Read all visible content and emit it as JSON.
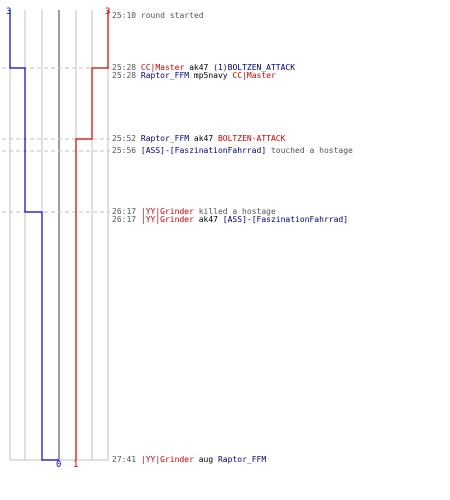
{
  "colors": {
    "team_blue": "#0000cc",
    "team_red": "#cc0000",
    "player_blue": "#000080",
    "player_red": "#cc0000",
    "grid": "#c0c0c0",
    "grid_center": "#808080",
    "dashed": "#c0c0c0",
    "time_text": "#555555",
    "action_text": "#555555",
    "weapon_text": "#000000"
  },
  "score_labels": {
    "blue_start": "3",
    "red_start": "3",
    "blue_end": "0",
    "red_end": "1"
  },
  "timeline": {
    "blue_counts": [
      3,
      3,
      2,
      2,
      2,
      1,
      1,
      0
    ],
    "red_counts": [
      3,
      2,
      2,
      1,
      1,
      1,
      1,
      1
    ]
  },
  "events": [
    {
      "time": "25:10",
      "parts": [
        {
          "text": "round started",
          "class": "act"
        }
      ]
    },
    {
      "time": "25:28",
      "parts": [
        {
          "text": "CC|Master",
          "class": "p-red"
        },
        {
          "text": " ak47 ",
          "class": "weap"
        },
        {
          "text": "(1)BOLTZEN_ATTACK",
          "class": "p-blue"
        }
      ]
    },
    {
      "time": "25:28",
      "parts": [
        {
          "text": "Raptor_FFM",
          "class": "p-blue"
        },
        {
          "text": " mp5navy ",
          "class": "weap"
        },
        {
          "text": "CC|Master",
          "class": "p-red"
        }
      ]
    },
    {
      "time": "25:52",
      "parts": [
        {
          "text": "Raptor_FFM",
          "class": "p-blue"
        },
        {
          "text": " ak47 ",
          "class": "weap"
        },
        {
          "text": "BOLTZEN-ATTACK",
          "class": "p-red"
        }
      ]
    },
    {
      "time": "25:56",
      "parts": [
        {
          "text": "[ASS]-[FaszinationFahrrad]",
          "class": "p-blue"
        },
        {
          "text": " touched a hostage",
          "class": "act"
        }
      ]
    },
    {
      "time": "26:17",
      "parts": [
        {
          "text": "|YY|Grinder",
          "class": "p-red"
        },
        {
          "text": " killed a hostage",
          "class": "act"
        }
      ]
    },
    {
      "time": "26:17",
      "parts": [
        {
          "text": "|YY|Grinder",
          "class": "p-red"
        },
        {
          "text": " ak47 ",
          "class": "weap"
        },
        {
          "text": "[ASS]-[FaszinationFahrrad]",
          "class": "p-blue"
        }
      ]
    },
    {
      "time": "27:41",
      "parts": [
        {
          "text": "|YY|Grinder",
          "class": "p-red"
        },
        {
          "text": " aug ",
          "class": "weap"
        },
        {
          "text": "Raptor_FFM",
          "class": "p-blue"
        }
      ]
    }
  ]
}
